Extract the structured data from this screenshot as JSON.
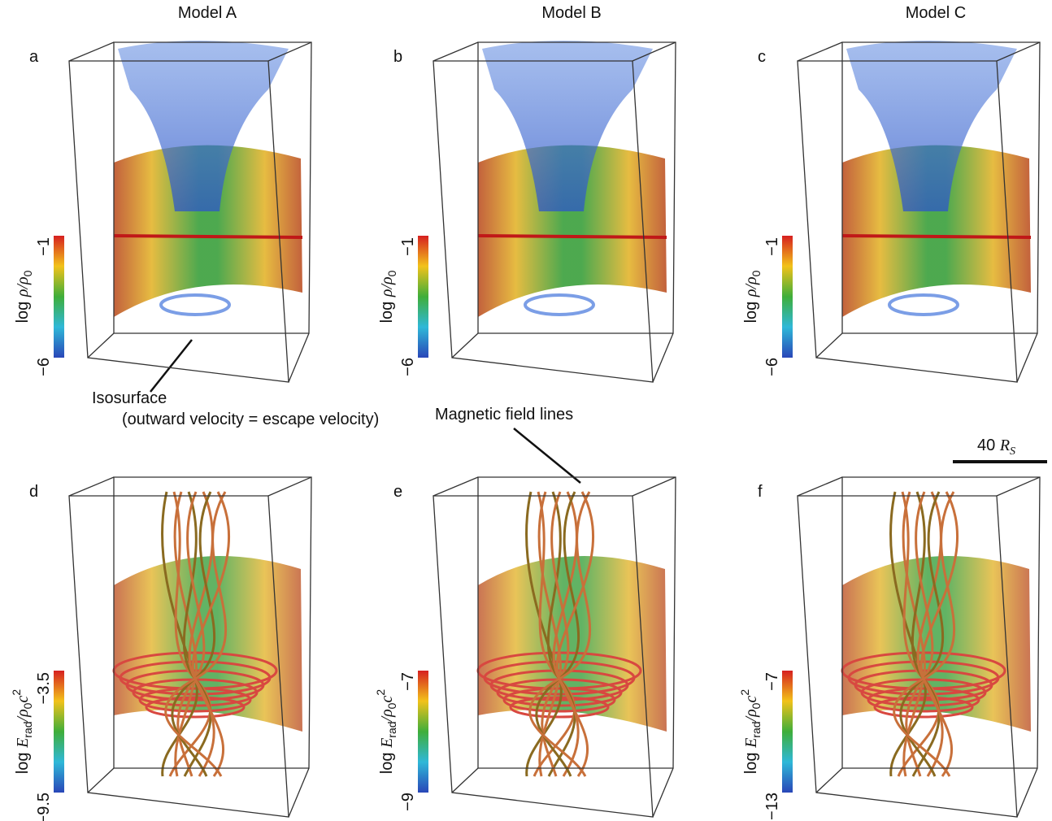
{
  "columns": [
    "Model A",
    "Model B",
    "Model C"
  ],
  "panels": [
    {
      "label": "a",
      "colorbar": {
        "max": "−1",
        "min": "−6"
      }
    },
    {
      "label": "b",
      "colorbar": {
        "max": "−1",
        "min": "−6"
      }
    },
    {
      "label": "c",
      "colorbar": {
        "max": "−1",
        "min": "−6"
      }
    },
    {
      "label": "d",
      "colorbar": {
        "max": "−3.5",
        "min": "−9.5"
      }
    },
    {
      "label": "e",
      "colorbar": {
        "max": "−7",
        "min": "−9"
      }
    },
    {
      "label": "f",
      "colorbar": {
        "max": "−7",
        "min": "−13"
      }
    }
  ],
  "colorbar_labels": {
    "density": {
      "prefix": "log ",
      "var": "ρ/ρ",
      "sub": "0"
    },
    "radiation": {
      "prefix": "log ",
      "var": "E",
      "sub1": "rad",
      "mid": "/ρ",
      "sub2": "0",
      "tail": "c",
      "sup": "2"
    }
  },
  "annotations": {
    "isosurface": "Isosurface",
    "isosurface_note": "(outward velocity = escape velocity)",
    "field_lines": "Magnetic field lines"
  },
  "scale_bar": {
    "length": "40",
    "unit": "R",
    "unit_sub": "S"
  }
}
